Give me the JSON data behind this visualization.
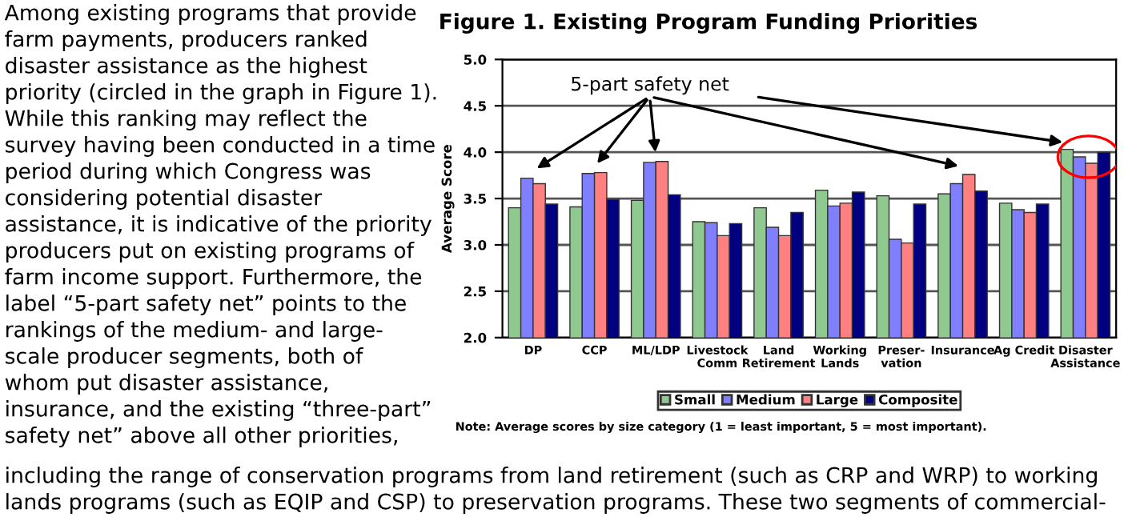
{
  "chart_data": {
    "type": "bar",
    "title": "Figure 1. Existing Program Funding Priorities",
    "ylabel": "Average Score",
    "categories": [
      "DP",
      "CCP",
      "ML/LDP",
      "Livestock\nComm",
      "Land\nRetirement",
      "Working\nLands",
      "Preser-\nvation",
      "Insurance",
      "Ag Credit",
      "Disaster\nAssistance"
    ],
    "series": [
      {
        "name": "Small",
        "color": "#8fc98f",
        "values": [
          3.4,
          3.41,
          3.48,
          3.25,
          3.4,
          3.59,
          3.53,
          3.55,
          3.45,
          4.03
        ]
      },
      {
        "name": "Medium",
        "color": "#8080ff",
        "values": [
          3.72,
          3.77,
          3.89,
          3.24,
          3.19,
          3.42,
          3.06,
          3.66,
          3.38,
          3.95
        ]
      },
      {
        "name": "Large",
        "color": "#ff8080",
        "values": [
          3.66,
          3.78,
          3.9,
          3.1,
          3.1,
          3.45,
          3.02,
          3.76,
          3.35,
          3.88
        ]
      },
      {
        "name": "Composite",
        "color": "#000080",
        "values": [
          3.44,
          3.49,
          3.54,
          3.23,
          3.35,
          3.57,
          3.44,
          3.58,
          3.44,
          4.0
        ]
      }
    ],
    "ylim": [
      2.0,
      5.0
    ],
    "yticks": [
      {
        "value": 2.0,
        "label": "2.0"
      },
      {
        "value": 2.5,
        "label": "2.5"
      },
      {
        "value": 3.0,
        "label": "3.0"
      },
      {
        "value": 3.5,
        "label": "3.5"
      },
      {
        "value": 4.0,
        "label": "4.0"
      },
      {
        "value": 4.5,
        "label": "4.5"
      },
      {
        "value": 5.0,
        "label": "5.0"
      }
    ],
    "grid": "y",
    "legend": "bottom",
    "annotations": [
      "5-part safety net",
      "Note: Average scores by size category (1 = least important, 5 = most important).",
      "Among existing programs that provide",
      "farm payments, producers ranked",
      "disaster assistance as the highest",
      "priority (circled in the graph in Figure 1).",
      "While this ranking may reflect the",
      "survey having been conducted in a time",
      "period during which Congress was",
      "considering potential disaster",
      "assistance, it is indicative of the priority",
      "producers put on existing programs of",
      "farm income support. Furthermore, the",
      "label “5-part safety net” points to the",
      "rankings of the medium- and large-",
      "scale producer segments, both of",
      "whom put disaster assistance,",
      "insurance, and the existing “three-part”",
      "safety net” above all other priorities,",
      "including the range of conservation programs from land retirement (such as CRP and WRP) to working",
      "lands programs (such as EQIP and CSP) to preservation programs. These two segments of commercial-"
    ]
  }
}
